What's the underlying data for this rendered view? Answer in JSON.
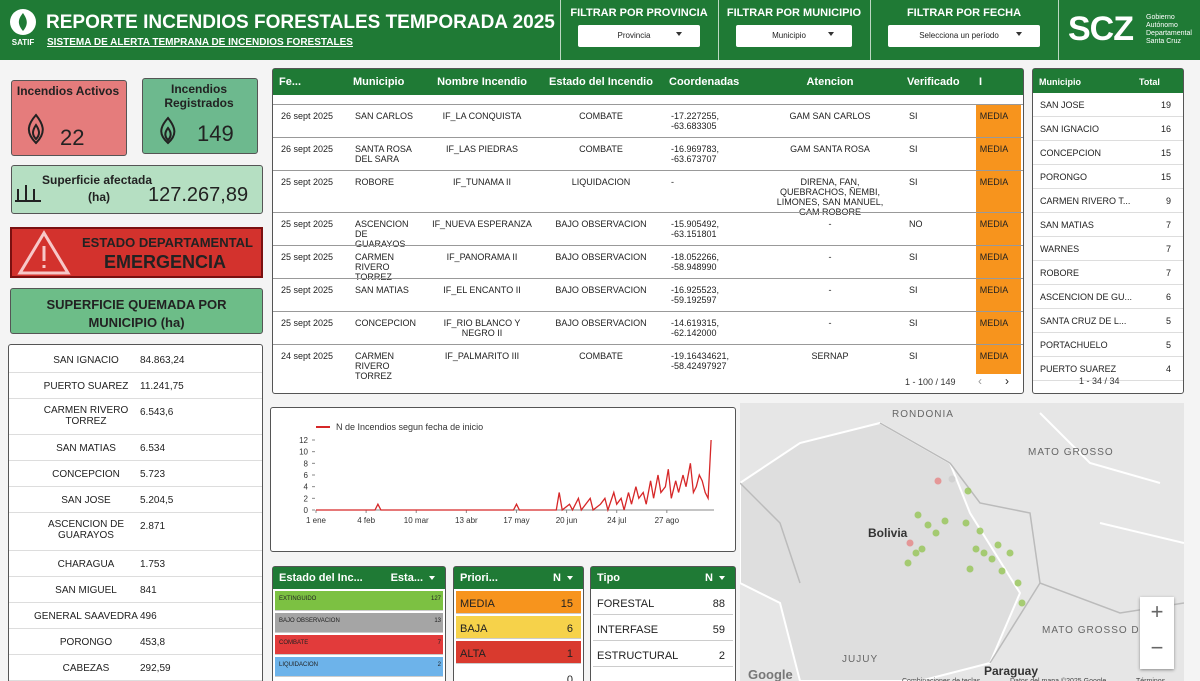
{
  "header": {
    "logo": "SATIF",
    "title": "REPORTE INCENDIOS FORESTALES TEMPORADA 2025",
    "subtitle": "SISTEMA DE ALERTA TEMPRANA DE INCENDIOS FORESTALES",
    "filters": [
      {
        "label": "FILTRAR POR PROVINCIA",
        "value": "Provincia"
      },
      {
        "label": "FILTRAR POR MUNICIPIO",
        "value": "Municipio"
      },
      {
        "label": "FILTRAR POR FECHA",
        "value": "Selecciona un período"
      }
    ],
    "gov_logo": "SCZ",
    "gov_text": "Gobierno Autónomo Departamental Santa Cruz"
  },
  "kpis": {
    "active": {
      "label": "Incendios Activos",
      "value": 22
    },
    "registered": {
      "label": "Incendios Registrados",
      "value": 149
    },
    "area": {
      "label": "Superficie afectada",
      "unit": "(ha)",
      "value": "127.267,89"
    },
    "state": {
      "label": "ESTADO DEPARTAMENTAL",
      "value": "EMERGENCIA"
    }
  },
  "municipality_area": {
    "title": "SUPERFICIE QUEMADA POR MUNICIPIO (ha)",
    "rows": [
      [
        "SAN IGNACIO",
        "84.863,24"
      ],
      [
        "PUERTO SUAREZ",
        "11.241,75"
      ],
      [
        "CARMEN RIVERO TORREZ",
        "6.543,6"
      ],
      [
        "SAN MATIAS",
        "6.534"
      ],
      [
        "CONCEPCION",
        "5.723"
      ],
      [
        "SAN JOSE",
        "5.204,5"
      ],
      [
        "ASCENCION DE GUARAYOS",
        "2.871"
      ],
      [
        "CHARAGUA",
        "1.753"
      ],
      [
        "SAN MIGUEL",
        "841"
      ],
      [
        "GENERAL SAAVEDRA",
        "496"
      ],
      [
        "PORONGO",
        "453,8"
      ],
      [
        "CABEZAS",
        "292,59"
      ]
    ]
  },
  "fires_table": {
    "headers": [
      "Fe...",
      "Municipio",
      "Nombre Incendio",
      "Estado del Incendio",
      "Coordenadas",
      "Atencion",
      "Verificado",
      "I"
    ],
    "rows": [
      [
        "26 sept 2025",
        "SAN CARLOS",
        "IF_LA CONQUISTA",
        "COMBATE",
        "-17.227255, -63.683305",
        "GAM SAN CARLOS",
        "SI",
        "MEDIA"
      ],
      [
        "26 sept 2025",
        "SANTA ROSA DEL SARA",
        "IF_LAS PIEDRAS",
        "COMBATE",
        "-16.969783, -63.673707",
        "GAM SANTA ROSA",
        "SI",
        "MEDIA"
      ],
      [
        "25 sept 2025",
        "ROBORE",
        "IF_TUNAMA II",
        "LIQUIDACION",
        "-",
        "DIRENA, FAN, QUEBRACHOS, ÑEMBI, LIMONES, SAN MANUEL, GAM ROBORE",
        "SI",
        "MEDIA"
      ],
      [
        "25 sept 2025",
        "ASCENCION DE GUARAYOS",
        "IF_NUEVA ESPERANZA",
        "BAJO OBSERVACION",
        "-15.905492, -63.151801",
        "-",
        "NO",
        "MEDIA"
      ],
      [
        "25 sept 2025",
        "CARMEN RIVERO TORREZ",
        "IF_PANORAMA II",
        "BAJO OBSERVACION",
        "-18.052266, -58.948990",
        "-",
        "SI",
        "MEDIA"
      ],
      [
        "25 sept 2025",
        "SAN MATIAS",
        "IF_EL ENCANTO II",
        "BAJO OBSERVACION",
        "-16.925523, -59.192597",
        "-",
        "SI",
        "MEDIA"
      ],
      [
        "25 sept 2025",
        "CONCEPCION",
        "IF_RIO BLANCO Y NEGRO II",
        "BAJO OBSERVACION",
        "-14.619315, -62.142000",
        "-",
        "SI",
        "MEDIA"
      ],
      [
        "24 sept 2025",
        "CARMEN RIVERO TORREZ",
        "IF_PALMARITO III",
        "COMBATE",
        "-19.16434621, -58.42497927",
        "SERNAP",
        "SI",
        "MEDIA"
      ]
    ],
    "pagination": "1 - 100 / 149"
  },
  "municipality_counts": {
    "headers": [
      "Municipio",
      "Total"
    ],
    "rows": [
      [
        "SAN JOSE",
        19
      ],
      [
        "SAN IGNACIO",
        16
      ],
      [
        "CONCEPCION",
        15
      ],
      [
        "PORONGO",
        15
      ],
      [
        "CARMEN RIVERO T...",
        9
      ],
      [
        "SAN MATIAS",
        7
      ],
      [
        "WARNES",
        7
      ],
      [
        "ROBORE",
        7
      ],
      [
        "ASCENCION DE GU...",
        6
      ],
      [
        "SANTA CRUZ DE L...",
        5
      ],
      [
        "PORTACHUELO",
        5
      ],
      [
        "PUERTO SUAREZ",
        4
      ]
    ],
    "pagination": "1 - 34 / 34"
  },
  "chart_data": {
    "type": "line",
    "legend": "N de Incendios segun fecha de inicio",
    "color": "#d62728",
    "x": [
      0,
      10,
      20,
      30,
      40,
      42,
      44,
      60,
      80,
      100,
      120,
      134,
      136,
      138,
      150,
      163,
      165,
      167,
      172,
      174,
      178,
      180,
      186,
      188,
      193,
      196,
      198,
      202,
      204,
      207,
      209,
      212,
      214,
      217,
      219,
      222,
      224,
      227,
      229,
      232,
      234,
      237,
      239,
      241,
      244,
      246,
      249,
      251,
      254,
      256,
      258,
      260,
      262,
      264,
      266,
      268
    ],
    "values": [
      0,
      0,
      0,
      0,
      0,
      1,
      0,
      0,
      0,
      0,
      0,
      0,
      1,
      0,
      0,
      0,
      3,
      0,
      1,
      0,
      2,
      0,
      2,
      0,
      1,
      2,
      0,
      3,
      1,
      2,
      0,
      3,
      1,
      4,
      2,
      3,
      1,
      5,
      2,
      6,
      3,
      4,
      7,
      2,
      5,
      3,
      6,
      4,
      8,
      3,
      4,
      6,
      5,
      3,
      2,
      12
    ],
    "xlim": [
      0,
      270
    ],
    "xticks": [
      {
        "value": 0,
        "label": "1 ene"
      },
      {
        "value": 34,
        "label": "4 feb"
      },
      {
        "value": 68,
        "label": "10 mar"
      },
      {
        "value": 102,
        "label": "13 abr"
      },
      {
        "value": 136,
        "label": "17 may"
      },
      {
        "value": 170,
        "label": "20 jun"
      },
      {
        "value": 204,
        "label": "24 jul"
      },
      {
        "value": 238,
        "label": "27 ago"
      }
    ],
    "ylim": [
      0,
      12
    ],
    "yticks": [
      0,
      2,
      4,
      6,
      8,
      10,
      12
    ]
  },
  "status_table": {
    "headers": [
      "Estado del Inc...",
      "Esta..."
    ],
    "rows": [
      [
        "EXTINGUIDO",
        127
      ],
      [
        "BAJO OBSERVACION",
        13
      ],
      [
        "COMBATE",
        7
      ],
      [
        "LIQUIDACION",
        2
      ]
    ]
  },
  "priority_table": {
    "headers": [
      "Priori...",
      "N"
    ],
    "rows": [
      [
        "MEDIA",
        15
      ],
      [
        "BAJA",
        6
      ],
      [
        "ALTA",
        1
      ]
    ],
    "next_value": 0
  },
  "type_table": {
    "headers": [
      "Tipo",
      "N"
    ],
    "rows": [
      [
        "FORESTAL",
        88
      ],
      [
        "INTERFASE",
        59
      ],
      [
        "ESTRUCTURAL",
        2
      ]
    ]
  },
  "map": {
    "labels": [
      "RONDONIA",
      "MATO GROSSO",
      "Bolivia",
      "MATO GROSSO DO SUL",
      "JUJUY",
      "Paraguay"
    ],
    "google": "Google",
    "footer": [
      "Combinaciones de teclas",
      "Datos del mapa ©2025 Google",
      "Términos"
    ]
  }
}
